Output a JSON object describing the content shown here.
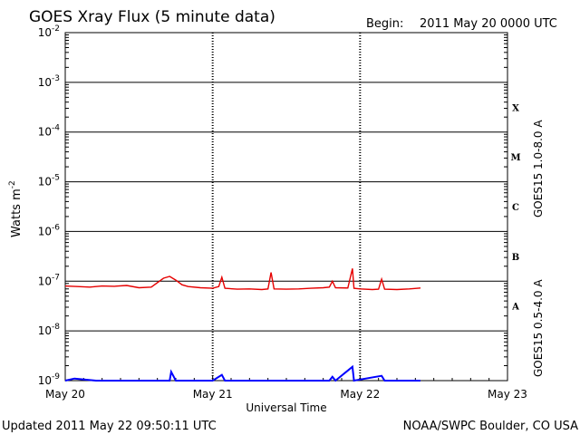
{
  "header": {
    "title": "GOES Xray Flux (5 minute data)",
    "begin_label": "Begin:",
    "begin_value": "2011 May 20 0000 UTC"
  },
  "footer": {
    "updated": "Updated 2011 May 22 09:50:11 UTC",
    "credit": "NOAA/SWPC Boulder, CO USA"
  },
  "colors": {
    "long_channel": "#e60000",
    "short_channel": "#0000ff",
    "grid": "#000000"
  },
  "chart_data": {
    "type": "line",
    "xlabel": "Universal Time",
    "ylabel_base": "Watts m",
    "ylabel_exponent": "-2",
    "yscale": "log",
    "ylim": [
      1e-09,
      0.01
    ],
    "xlim": [
      "2011-05-20 00:00",
      "2011-05-23 00:00"
    ],
    "x_ticks": [
      "May 20",
      "May 21",
      "May 22",
      "May 23"
    ],
    "y_ticks": [
      {
        "base": "10",
        "exp": "-2"
      },
      {
        "base": "10",
        "exp": "-3"
      },
      {
        "base": "10",
        "exp": "-4"
      },
      {
        "base": "10",
        "exp": "-5"
      },
      {
        "base": "10",
        "exp": "-6"
      },
      {
        "base": "10",
        "exp": "-7"
      },
      {
        "base": "10",
        "exp": "-8"
      },
      {
        "base": "10",
        "exp": "-9"
      }
    ],
    "flare_classes": [
      "X",
      "M",
      "C",
      "B",
      "A"
    ],
    "series": [
      {
        "name": "GOES15 1.0-8.0 A",
        "x": [
          "2011-05-20 00:00",
          "2011-05-20 02:00",
          "2011-05-20 04:00",
          "2011-05-20 06:00",
          "2011-05-20 08:00",
          "2011-05-20 10:00",
          "2011-05-20 12:00",
          "2011-05-20 14:00",
          "2011-05-20 16:00",
          "2011-05-20 17:00",
          "2011-05-20 18:00",
          "2011-05-20 19:00",
          "2011-05-20 20:00",
          "2011-05-20 22:00",
          "2011-05-21 00:00",
          "2011-05-21 01:00",
          "2011-05-21 01:30",
          "2011-05-21 02:00",
          "2011-05-21 04:00",
          "2011-05-21 06:00",
          "2011-05-21 08:00",
          "2011-05-21 09:00",
          "2011-05-21 09:30",
          "2011-05-21 10:00",
          "2011-05-21 12:00",
          "2011-05-21 14:00",
          "2011-05-21 16:00",
          "2011-05-21 18:00",
          "2011-05-21 19:00",
          "2011-05-21 19:30",
          "2011-05-21 20:00",
          "2011-05-21 22:00",
          "2011-05-21 22:45",
          "2011-05-21 23:00",
          "2011-05-22 00:00",
          "2011-05-22 02:00",
          "2011-05-22 03:00",
          "2011-05-22 03:30",
          "2011-05-22 04:00",
          "2011-05-22 06:00",
          "2011-05-22 08:00",
          "2011-05-22 09:50"
        ],
        "y": [
          8e-08,
          7.8e-08,
          7.6e-08,
          8e-08,
          7.9e-08,
          8.2e-08,
          7.4e-08,
          7.6e-08,
          1.15e-07,
          1.25e-07,
          1.05e-07,
          8.5e-08,
          7.8e-08,
          7.4e-08,
          7.2e-08,
          7.8e-08,
          1.2e-07,
          7.2e-08,
          6.9e-08,
          7e-08,
          6.8e-08,
          7e-08,
          1.5e-07,
          7e-08,
          6.9e-08,
          7e-08,
          7.2e-08,
          7.4e-08,
          7.6e-08,
          1e-07,
          7.4e-08,
          7.3e-08,
          1.8e-07,
          7.2e-08,
          7e-08,
          6.8e-08,
          6.9e-08,
          1.1e-07,
          6.9e-08,
          6.8e-08,
          7e-08,
          7.3e-08
        ]
      },
      {
        "name": "GOES15 0.5-4.0 A",
        "x": [
          "2011-05-20 00:00",
          "2011-05-20 01:30",
          "2011-05-20 05:00",
          "2011-05-20 10:00",
          "2011-05-20 17:00",
          "2011-05-20 17:15",
          "2011-05-20 18:00",
          "2011-05-21 00:00",
          "2011-05-21 01:30",
          "2011-05-21 02:00",
          "2011-05-21 10:00",
          "2011-05-21 19:00",
          "2011-05-21 19:30",
          "2011-05-21 20:00",
          "2011-05-21 22:45",
          "2011-05-21 23:00",
          "2011-05-22 03:30",
          "2011-05-22 04:00",
          "2011-05-22 09:50"
        ],
        "y": [
          1e-09,
          1.1e-09,
          1e-09,
          1e-09,
          1e-09,
          1.5e-09,
          1e-09,
          1e-09,
          1.3e-09,
          1e-09,
          1e-09,
          1e-09,
          1.2e-09,
          1e-09,
          1.9e-09,
          1e-09,
          1.25e-09,
          1e-09,
          1e-09
        ]
      }
    ]
  }
}
